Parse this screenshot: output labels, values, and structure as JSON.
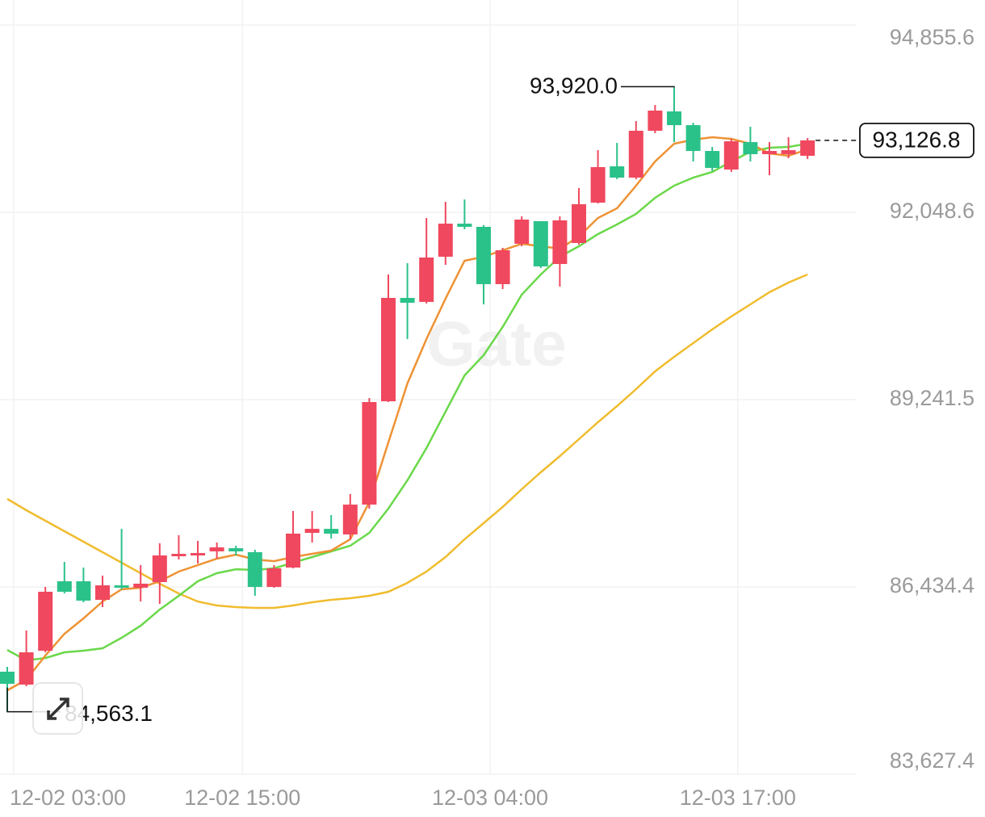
{
  "chart_data": {
    "type": "candlestick",
    "watermark": "Gate",
    "categories": [
      "12-02 03:00",
      null,
      null,
      null,
      null,
      null,
      null,
      null,
      null,
      null,
      null,
      null,
      "12-02 15:00",
      null,
      null,
      null,
      null,
      null,
      null,
      null,
      null,
      null,
      null,
      null,
      null,
      "12-03 04:00",
      null,
      null,
      null,
      null,
      null,
      null,
      null,
      null,
      null,
      null,
      null,
      null,
      "12-03 17:00",
      null,
      null,
      null,
      null
    ],
    "open": [
      85164,
      84970,
      85478,
      86519,
      86519,
      86241,
      86458,
      86422,
      86507,
      86894,
      86906,
      86967,
      87015,
      86955,
      86434,
      86725,
      87245,
      87305,
      87221,
      87668,
      89217,
      90766,
      90706,
      91383,
      91879,
      91831,
      90972,
      91577,
      91916,
      91274,
      91589,
      92194,
      92738,
      92569,
      93271,
      93561,
      93355,
      92968,
      92690,
      93101,
      92920,
      92920,
      92896
    ],
    "high": [
      85236,
      85781,
      86434,
      86809,
      86725,
      86604,
      87305,
      86761,
      87088,
      87209,
      87124,
      87100,
      87051,
      86991,
      86761,
      87572,
      87572,
      87511,
      87826,
      89266,
      91117,
      91286,
      91964,
      92206,
      92242,
      91855,
      91516,
      91988,
      91916,
      91988,
      92412,
      92980,
      93089,
      93416,
      93658,
      93920.0,
      93392,
      93029,
      93150,
      93331,
      93101,
      93174,
      93162
    ],
    "low": [
      84563.1,
      84946,
      85454,
      86337,
      86204,
      86132,
      86398,
      86216,
      86180,
      86846,
      86785,
      86858,
      86906,
      86301,
      86422,
      86713,
      87100,
      87160,
      87148,
      87608,
      89205,
      90149,
      90681,
      91262,
      91795,
      90669,
      90899,
      91540,
      91214,
      90935,
      91565,
      92182,
      92545,
      92545,
      93234,
      93101,
      92811,
      92666,
      92654,
      92811,
      92605,
      92859,
      92847
    ],
    "close": [
      84982,
      85454,
      86362,
      86362,
      86229,
      86458,
      86422,
      86483,
      86906,
      86930,
      86942,
      87027,
      86967,
      86434,
      86713,
      87233,
      87305,
      87233,
      87668,
      89205,
      90766,
      90693,
      91371,
      91879,
      91831,
      90972,
      91480,
      91940,
      91238,
      91928,
      92170,
      92726,
      92569,
      93271,
      93573,
      93355,
      92968,
      92714,
      93113,
      92920,
      92968,
      92980,
      93126.8
    ],
    "up_color": "#f0485e",
    "down_color": "#2bc28a",
    "lines": [
      {
        "color": "#f0bc2e",
        "values": [
          87753,
          87584,
          87426,
          87269,
          87112,
          86955,
          86797,
          86640,
          86483,
          86337,
          86216,
          86156,
          86132,
          86120,
          86120,
          86156,
          86204,
          86241,
          86265,
          86301,
          86362,
          86495,
          86664,
          86882,
          87148,
          87390,
          87632,
          87898,
          88152,
          88394,
          88649,
          88903,
          89145,
          89399,
          89665,
          89883,
          90088,
          90294,
          90488,
          90669,
          90851,
          90996,
          91117
        ]
      },
      {
        "color": "#6ad84a",
        "values": [
          85490,
          85333,
          85369,
          85454,
          85478,
          85515,
          85672,
          85853,
          86095,
          86301,
          86519,
          86640,
          86700,
          86688,
          86713,
          86797,
          86882,
          86967,
          87051,
          87245,
          87608,
          88031,
          88515,
          89060,
          89604,
          89907,
          90330,
          90814,
          91117,
          91383,
          91540,
          91722,
          91867,
          92024,
          92266,
          92448,
          92569,
          92654,
          92811,
          92956,
          93017,
          93029,
          93077
        ]
      },
      {
        "color": "#ee9234",
        "values": [
          84885,
          85043,
          85406,
          85732,
          85962,
          86216,
          86398,
          86422,
          86519,
          86664,
          86761,
          86858,
          86918,
          86846,
          86821,
          86882,
          86930,
          86979,
          87148,
          87705,
          88600,
          89483,
          90149,
          90754,
          91323,
          91383,
          91480,
          91577,
          91540,
          91504,
          91686,
          91964,
          92109,
          92448,
          92811,
          93077,
          93138,
          93174,
          93150,
          93077,
          92932,
          92896,
          92992
        ]
      }
    ],
    "ylim": [
      83627.4,
      94855.6
    ],
    "yticks": [
      {
        "value": 83627.4,
        "label": "83,627.4"
      },
      {
        "value": 86434.4,
        "label": "86,434.4"
      },
      {
        "value": 89241.5,
        "label": "89,241.5"
      },
      {
        "value": 92048.6,
        "label": "92,048.6"
      },
      {
        "value": 94855.6,
        "label": "94,855.6"
      }
    ],
    "grid": true,
    "high_label": "93,920.0",
    "low_label": "84,563.1",
    "last_label": "93,126.8"
  }
}
